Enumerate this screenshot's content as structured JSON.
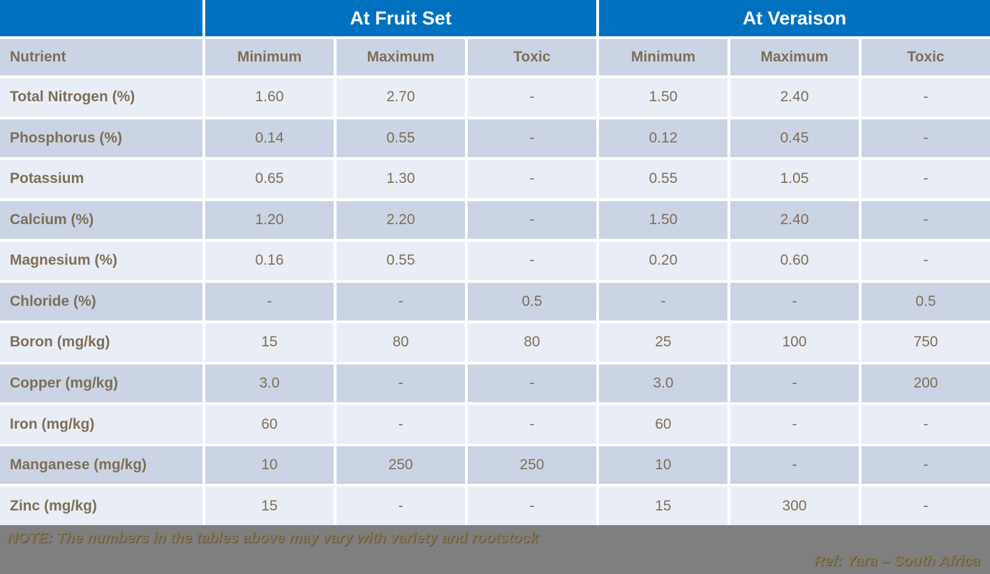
{
  "chart_data": {
    "type": "table",
    "group_headers": [
      "At Fruit Set",
      "At Veraison"
    ],
    "columns": [
      "Nutrient",
      "Minimum",
      "Maximum",
      "Toxic",
      "Minimum",
      "Maximum",
      "Toxic"
    ],
    "rows": [
      [
        "Total Nitrogen (%)",
        "1.60",
        "2.70",
        "-",
        "1.50",
        "2.40",
        "-"
      ],
      [
        "Phosphorus (%)",
        "0.14",
        "0.55",
        "-",
        "0.12",
        "0.45",
        "-"
      ],
      [
        "Potassium",
        "0.65",
        "1.30",
        "-",
        "0.55",
        "1.05",
        "-"
      ],
      [
        "Calcium (%)",
        "1.20",
        "2.20",
        "-",
        "1.50",
        "2.40",
        "-"
      ],
      [
        "Magnesium (%)",
        "0.16",
        "0.55",
        "-",
        "0.20",
        "0.60",
        "-"
      ],
      [
        "Chloride (%)",
        "-",
        "-",
        "0.5",
        "-",
        "-",
        "0.5"
      ],
      [
        "Boron (mg/kg)",
        "15",
        "80",
        "80",
        "25",
        "100",
        "750"
      ],
      [
        "Copper (mg/kg)",
        "3.0",
        "-",
        "-",
        "3.0",
        "-",
        "200"
      ],
      [
        "Iron (mg/kg)",
        "60",
        "-",
        "-",
        "60",
        "-",
        "-"
      ],
      [
        "Manganese (mg/kg)",
        "10",
        "250",
        "250",
        "10",
        "-",
        "-"
      ],
      [
        "Zinc (mg/kg)",
        "15",
        "-",
        "-",
        "15",
        "300",
        "-"
      ]
    ]
  },
  "footer": {
    "note": "NOTE: The numbers in the tables above may vary with variety and rootstock",
    "ref": "Ref: Yara – South Africa"
  },
  "colors": {
    "header_blue": "#0071BF",
    "row_light": "#E9EDF5",
    "row_dark": "#CBD4E5",
    "text_brown": "#7E6E57",
    "footer_gray": "#7F7F7F",
    "footer_text": "#8B7A5B"
  }
}
